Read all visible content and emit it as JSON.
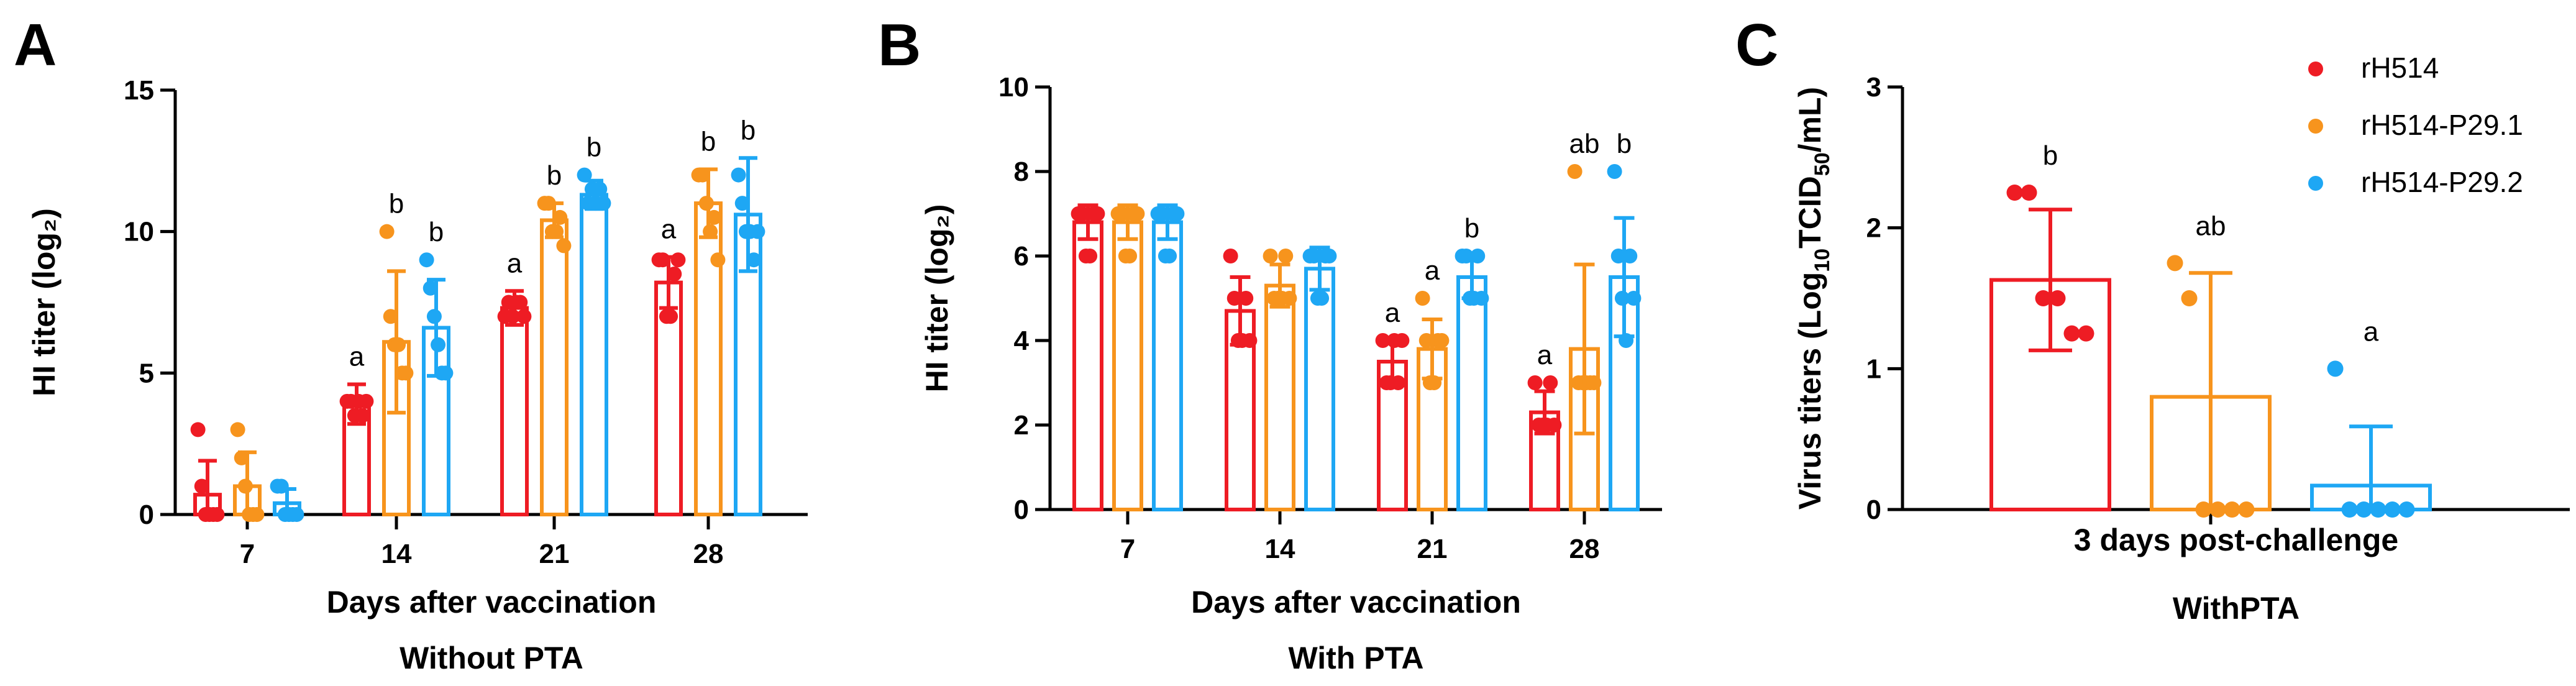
{
  "colors": {
    "rH514": "#ee1c24",
    "rH514-P29.1": "#f7941d",
    "rH514-P29.2": "#1ea7f4"
  },
  "legend": {
    "items": [
      "rH514",
      "rH514-P29.1",
      "rH514-P29.2"
    ],
    "placement": "top-right of panel C"
  },
  "chart_data": [
    {
      "panel": "A",
      "type": "bar",
      "categories": [
        "7",
        "14",
        "21",
        "28"
      ],
      "xlabel": "Days after vaccination",
      "subtitle": "Without PTA",
      "ylabel": "HI titer (log₂)",
      "ylim": [
        0,
        15
      ],
      "yticks": [
        0,
        5,
        10,
        15
      ],
      "series": [
        {
          "name": "rH514",
          "values": [
            0.7,
            3.9,
            7.3,
            8.2
          ],
          "errors": [
            1.2,
            0.7,
            0.6,
            0.9
          ],
          "points": [
            [
              3,
              1,
              0,
              0,
              0,
              0
            ],
            [
              4,
              4,
              3.5,
              4,
              3.5,
              4
            ],
            [
              7,
              7.5,
              7,
              7.5,
              7.5,
              7
            ],
            [
              9,
              9,
              7,
              7,
              8.5,
              9
            ]
          ],
          "labels": [
            "",
            "a",
            "a",
            "a"
          ]
        },
        {
          "name": "rH514-P29.1",
          "values": [
            1.0,
            6.1,
            10.4,
            11.0
          ],
          "errors": [
            1.2,
            2.5,
            0.6,
            1.2
          ],
          "points": [
            [
              3,
              2,
              1,
              0,
              0,
              0
            ],
            [
              10,
              7,
              6,
              6,
              5,
              5
            ],
            [
              11,
              11,
              10,
              10,
              10.5,
              9.5
            ],
            [
              12,
              12,
              11,
              10,
              10.5,
              9
            ]
          ],
          "labels": [
            "",
            "b",
            "b",
            "b"
          ]
        },
        {
          "name": "rH514-P29.2",
          "values": [
            0.4,
            6.6,
            11.3,
            10.6
          ],
          "errors": [
            0.5,
            1.7,
            0.5,
            2.0
          ],
          "points": [
            [
              1,
              1,
              0,
              0,
              0,
              0
            ],
            [
              9,
              8,
              7,
              6,
              5,
              5
            ],
            [
              12,
              11,
              11.5,
              11,
              11.5,
              11
            ],
            [
              12,
              11,
              10,
              10,
              9,
              10
            ]
          ],
          "labels": [
            "",
            "b",
            "b",
            "b"
          ]
        }
      ]
    },
    {
      "panel": "B",
      "type": "bar",
      "categories": [
        "7",
        "14",
        "21",
        "28"
      ],
      "xlabel": "Days after vaccination",
      "subtitle": "With PTA",
      "ylabel": "HI titer (log₂)",
      "ylim": [
        0,
        10
      ],
      "yticks": [
        0,
        2,
        4,
        6,
        8,
        10
      ],
      "series": [
        {
          "name": "rH514",
          "values": [
            6.8,
            4.7,
            3.5,
            2.3
          ],
          "errors": [
            0.4,
            0.8,
            0.5,
            0.5
          ],
          "points": [
            [
              7,
              7,
              6,
              6,
              7,
              7
            ],
            [
              6,
              5,
              4,
              4,
              5,
              4
            ],
            [
              4,
              3,
              3,
              4,
              3,
              4
            ],
            [
              3,
              2,
              2,
              2,
              3,
              2
            ]
          ],
          "labels": [
            "",
            "",
            "a",
            "a"
          ]
        },
        {
          "name": "rH514-P29.1",
          "values": [
            6.8,
            5.3,
            3.8,
            3.8
          ],
          "errors": [
            0.4,
            0.5,
            0.7,
            2.0
          ],
          "points": [
            [
              7,
              7,
              6,
              6,
              7,
              7
            ],
            [
              6,
              5,
              5,
              5,
              6,
              5
            ],
            [
              5,
              4,
              3,
              3,
              4,
              4
            ],
            [
              8,
              3,
              3,
              3,
              3,
              3
            ]
          ],
          "labels": [
            "",
            "",
            "a",
            "ab"
          ]
        },
        {
          "name": "rH514-P29.2",
          "values": [
            6.8,
            5.7,
            5.5,
            5.5
          ],
          "errors": [
            0.4,
            0.5,
            0.5,
            1.4
          ],
          "points": [
            [
              7,
              7,
              6,
              6,
              7,
              7
            ],
            [
              6,
              6,
              5,
              5,
              6,
              6
            ],
            [
              6,
              6,
              5,
              5,
              6,
              5
            ],
            [
              8,
              6,
              5,
              4,
              6,
              5
            ]
          ],
          "labels": [
            "",
            "",
            "b",
            "b"
          ]
        }
      ]
    },
    {
      "panel": "C",
      "type": "bar",
      "categories": [
        "3 days post-challenge"
      ],
      "xlabel": "3 days post-challenge",
      "subtitle": "WithPTA",
      "ylabel": "Virus titers (Log10TCID50/mL)",
      "ylabel_parts": {
        "prefix": "Virus titers (Log",
        "sub1": "10",
        "mid": "TCID",
        "sub2": "50",
        "suffix": "/mL)"
      },
      "ylim": [
        0,
        3
      ],
      "yticks": [
        0,
        1,
        2,
        3
      ],
      "series": [
        {
          "name": "rH514",
          "values": [
            1.63
          ],
          "errors": [
            0.5
          ],
          "points": [
            [
              2.25,
              2.25,
              1.5,
              1.5,
              1.25,
              1.25
            ]
          ],
          "labels": [
            "b"
          ]
        },
        {
          "name": "rH514-P29.1",
          "values": [
            0.8
          ],
          "errors": [
            0.88
          ],
          "points": [
            [
              1.75,
              1.5,
              0,
              0,
              0,
              0
            ]
          ],
          "labels": [
            "ab"
          ]
        },
        {
          "name": "rH514-P29.2",
          "values": [
            0.17
          ],
          "errors": [
            0.42
          ],
          "points": [
            [
              1.0,
              0,
              0,
              0,
              0,
              0
            ]
          ],
          "labels": [
            "a"
          ]
        }
      ]
    }
  ]
}
